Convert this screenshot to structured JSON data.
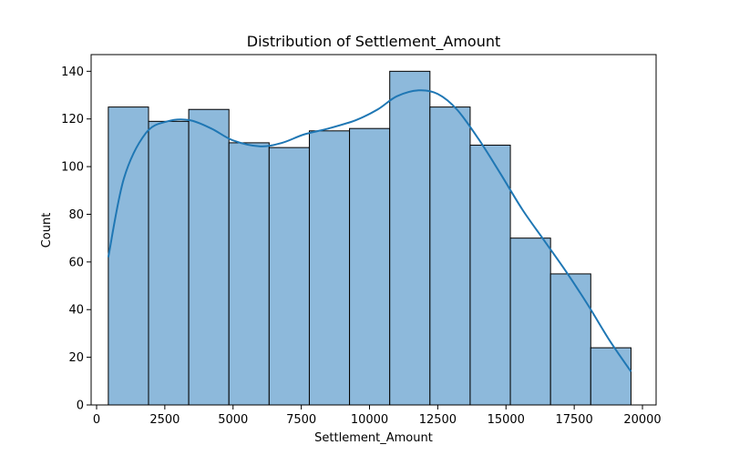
{
  "chart_data": {
    "type": "bar",
    "subtype": "histogram",
    "title": "Distribution of Settlement_Amount",
    "xlabel": "Settlement_Amount",
    "ylabel": "Count",
    "xlim": [
      -200,
      20500
    ],
    "ylim": [
      0,
      147
    ],
    "xticks": [
      0,
      2500,
      5000,
      7500,
      10000,
      12500,
      15000,
      17500,
      20000
    ],
    "yticks": [
      0,
      20,
      40,
      60,
      80,
      100,
      120,
      140
    ],
    "bin_edges": [
      430,
      1903,
      3376,
      4849,
      6322,
      7795,
      9268,
      10741,
      12214,
      13687,
      15160,
      16633,
      18106,
      19580
    ],
    "counts": [
      125,
      119,
      124,
      110,
      108,
      115,
      116,
      140,
      125,
      109,
      70,
      55,
      24
    ],
    "kde": {
      "x": [
        430,
        1000,
        1800,
        2600,
        3400,
        4200,
        5000,
        6000,
        6800,
        7600,
        8500,
        9500,
        10300,
        11000,
        11800,
        12500,
        13200,
        14000,
        14800,
        15600,
        16400,
        17200,
        18000,
        18800,
        19580
      ],
      "y": [
        62,
        95,
        114,
        119,
        119.5,
        116,
        111,
        108.5,
        110,
        113.5,
        116,
        119.5,
        124,
        129.5,
        132,
        130.5,
        124,
        111.5,
        97,
        82,
        69,
        56,
        42,
        27,
        14
      ]
    },
    "bar_color": "#8db9db",
    "line_color": "#1f77b4",
    "grid": false
  }
}
